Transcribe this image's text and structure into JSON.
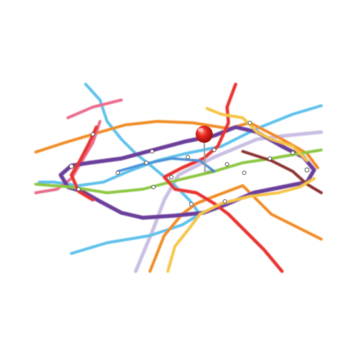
{
  "scene": {
    "subject": "transit-map-with-pushpin",
    "background_color": "#ffffff",
    "lines": [
      {
        "id": "red-line",
        "color": "#e8332d"
      },
      {
        "id": "purple-line",
        "color": "#6a3d9a"
      },
      {
        "id": "light-blue-line",
        "color": "#5bc0eb"
      },
      {
        "id": "green-line",
        "color": "#8cc63f"
      },
      {
        "id": "orange-line",
        "color": "#f08a24"
      },
      {
        "id": "yellow-line",
        "color": "#f6c445"
      },
      {
        "id": "pink-line",
        "color": "#ea6a8a"
      },
      {
        "id": "lavender-line",
        "color": "#c9bfe3"
      },
      {
        "id": "brown-line",
        "color": "#8b2d2d"
      },
      {
        "id": "blue-line",
        "color": "#4a8fd6"
      }
    ],
    "pin": {
      "head_color": "#e5221c",
      "needle_color": "#9a9a9a"
    }
  }
}
